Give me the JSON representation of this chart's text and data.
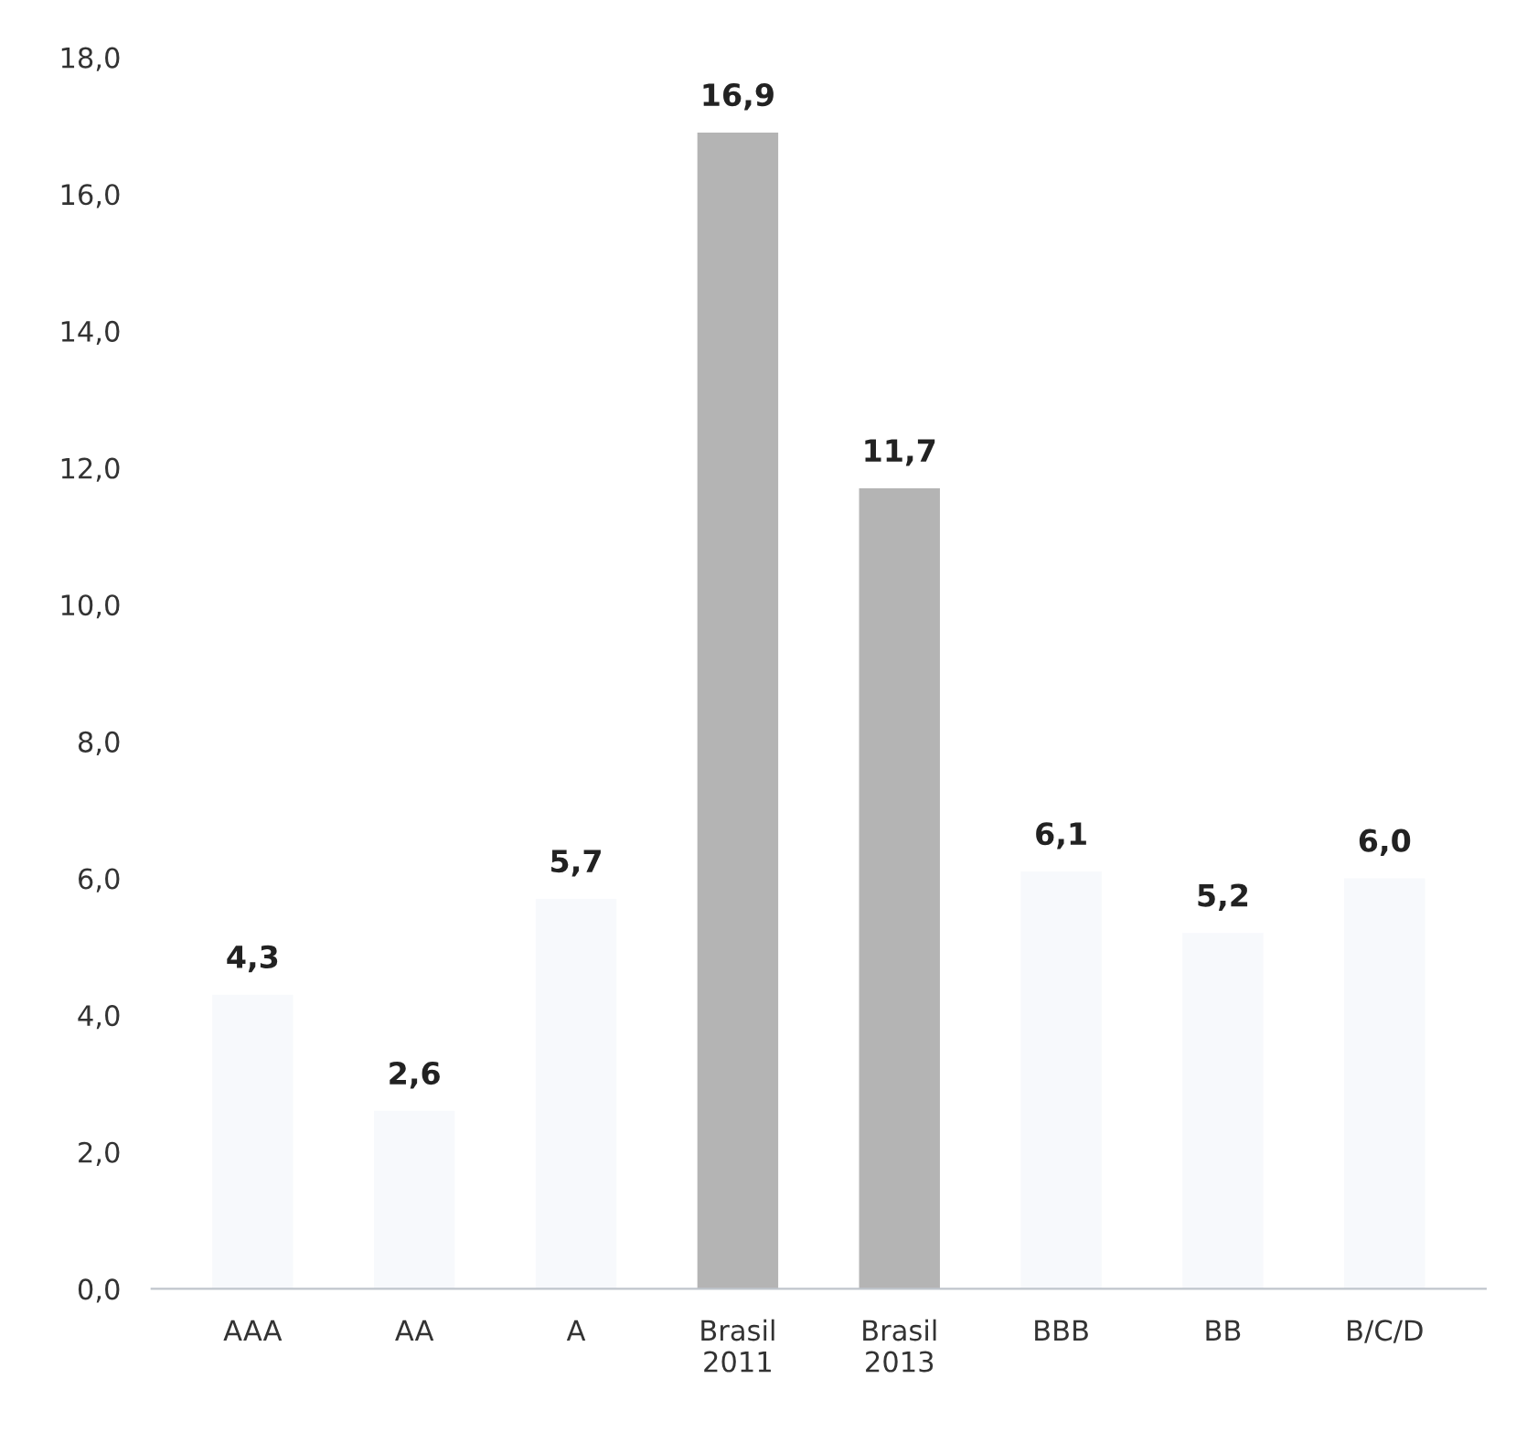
{
  "chart_data": {
    "type": "bar",
    "categories": [
      "AAA",
      "AA",
      "A",
      "Brasil\n2011",
      "Brasil\n2013",
      "BBB",
      "BB",
      "B/C/D"
    ],
    "values": [
      4.3,
      2.6,
      5.7,
      16.9,
      11.7,
      6.1,
      5.2,
      6.0
    ],
    "value_labels": [
      "4,3",
      "2,6",
      "5,7",
      "16,9",
      "11,7",
      "6,1",
      "5,2",
      "6,0"
    ],
    "colors": [
      "#f7f9fc",
      "#f7f9fc",
      "#f7f9fc",
      "#b4b4b4",
      "#b4b4b4",
      "#f7f9fc",
      "#f7f9fc",
      "#f7f9fc"
    ],
    "ylim": [
      0,
      18
    ],
    "yticks": [
      {
        "value": 0,
        "label": "0,0"
      },
      {
        "value": 2,
        "label": "2,0"
      },
      {
        "value": 4,
        "label": "4,0"
      },
      {
        "value": 6,
        "label": "6,0"
      },
      {
        "value": 8,
        "label": "8,0"
      },
      {
        "value": 10,
        "label": "10,0"
      },
      {
        "value": 12,
        "label": "12,0"
      },
      {
        "value": 14,
        "label": "14,0"
      },
      {
        "value": 16,
        "label": "16,0"
      },
      {
        "value": 18,
        "label": "18,0"
      }
    ],
    "grid": false,
    "legend": false
  }
}
